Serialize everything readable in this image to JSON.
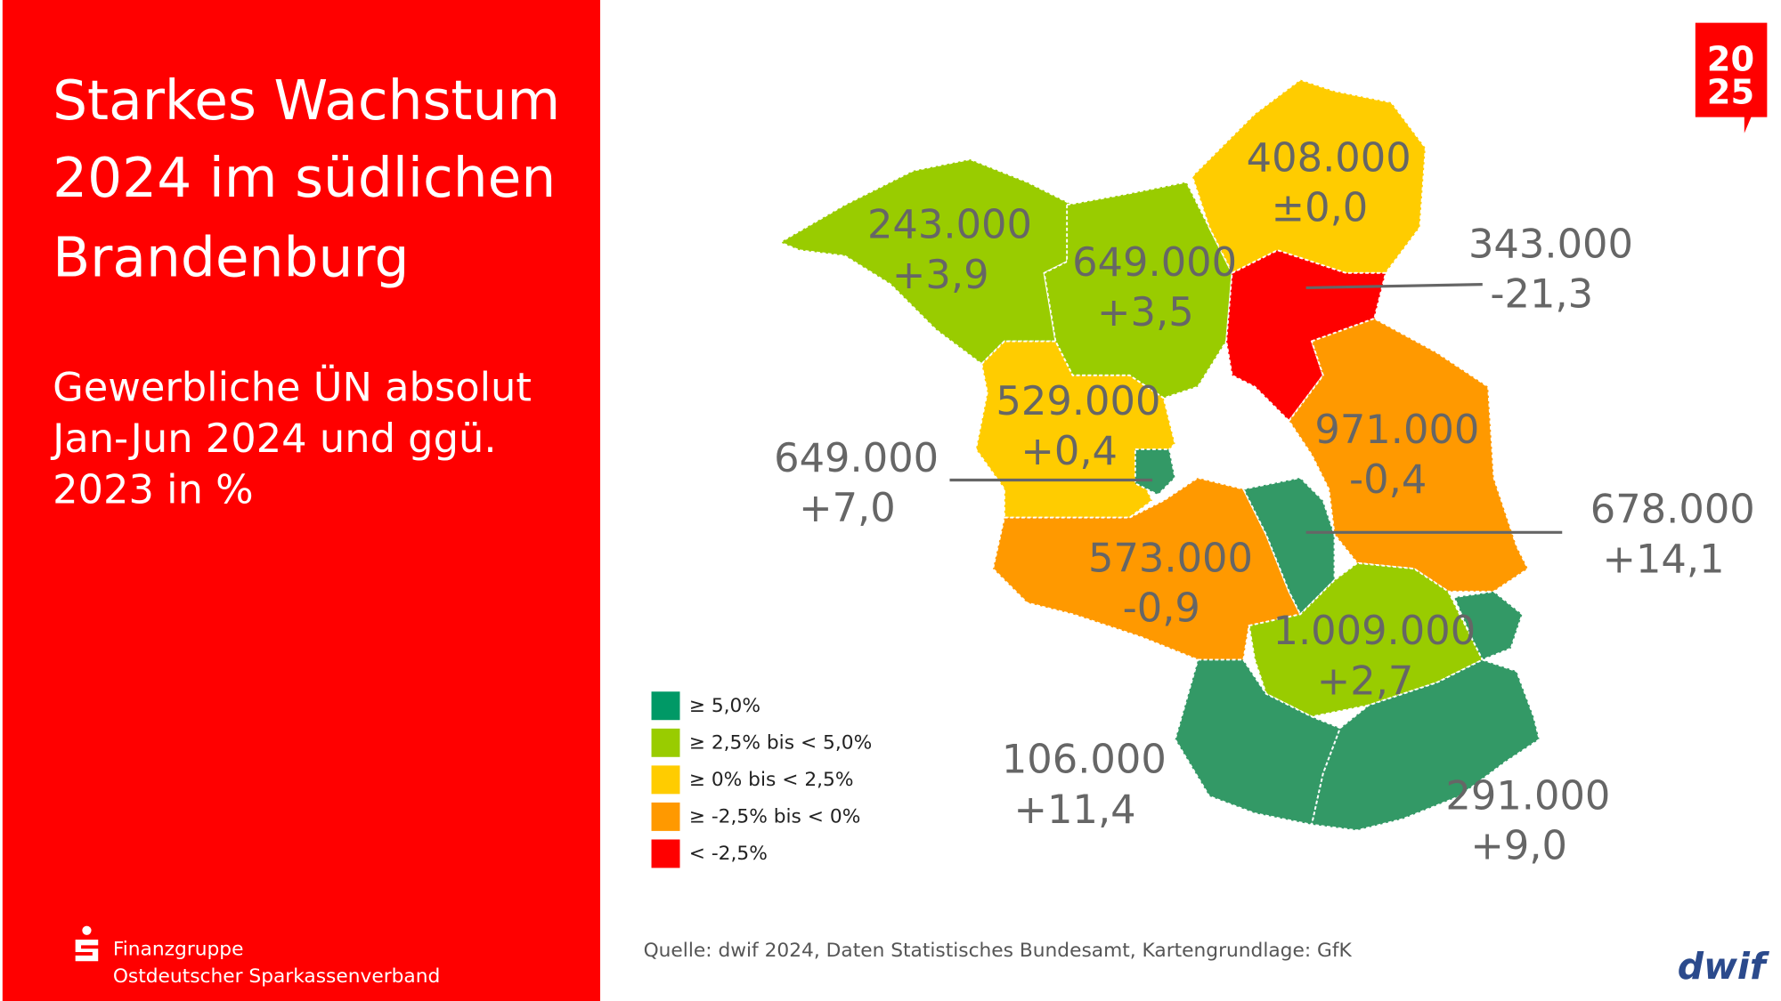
{
  "title": [
    "Starkes Wachstum",
    "2024 im südlichen",
    "Brandenburg"
  ],
  "subtitle": [
    "Gewerbliche ÜN absolut",
    "Jan-Jun 2024 und ggü.",
    "2023 in %"
  ],
  "regions": [
    {
      "value": "243.000",
      "change": "+3,9"
    },
    {
      "value": "649.000",
      "change": "+3,5"
    },
    {
      "value": "408.000",
      "change": "±0,0"
    },
    {
      "value": "343.000",
      "change": "-21,3"
    },
    {
      "value": "529.000",
      "change": "+0,4"
    },
    {
      "value": "649.000",
      "change": "+7,0"
    },
    {
      "value": "971.000",
      "change": "-0,4"
    },
    {
      "value": "678.000",
      "change": "+14,1"
    },
    {
      "value": "573.000",
      "change": "-0,9"
    },
    {
      "value": "1.009.000",
      "change": "+2,7"
    },
    {
      "value": "106.000",
      "change": "+11,4"
    },
    {
      "value": "291.000",
      "change": "+9,0"
    }
  ],
  "legend": [
    {
      "label": "≥ 5,0%",
      "color": "#009966"
    },
    {
      "label": "≥ 2,5% bis < 5,0%",
      "color": "#99cc00"
    },
    {
      "label": "≥ 0% bis < 2,5%",
      "color": "#ffcc00"
    },
    {
      "label": "≥ -2,5% bis < 0%",
      "color": "#ff9900"
    },
    {
      "label": "< -2,5%",
      "color": "#ff0000"
    }
  ],
  "source": "Quelle: dwif 2024, Daten Statistisches Bundesamt, Kartengrundlage: GfK",
  "footer": [
    "Finanzgruppe",
    "Ostdeutscher Sparkassenverband"
  ],
  "badge": [
    "20",
    "25"
  ],
  "logo": "dwif"
}
